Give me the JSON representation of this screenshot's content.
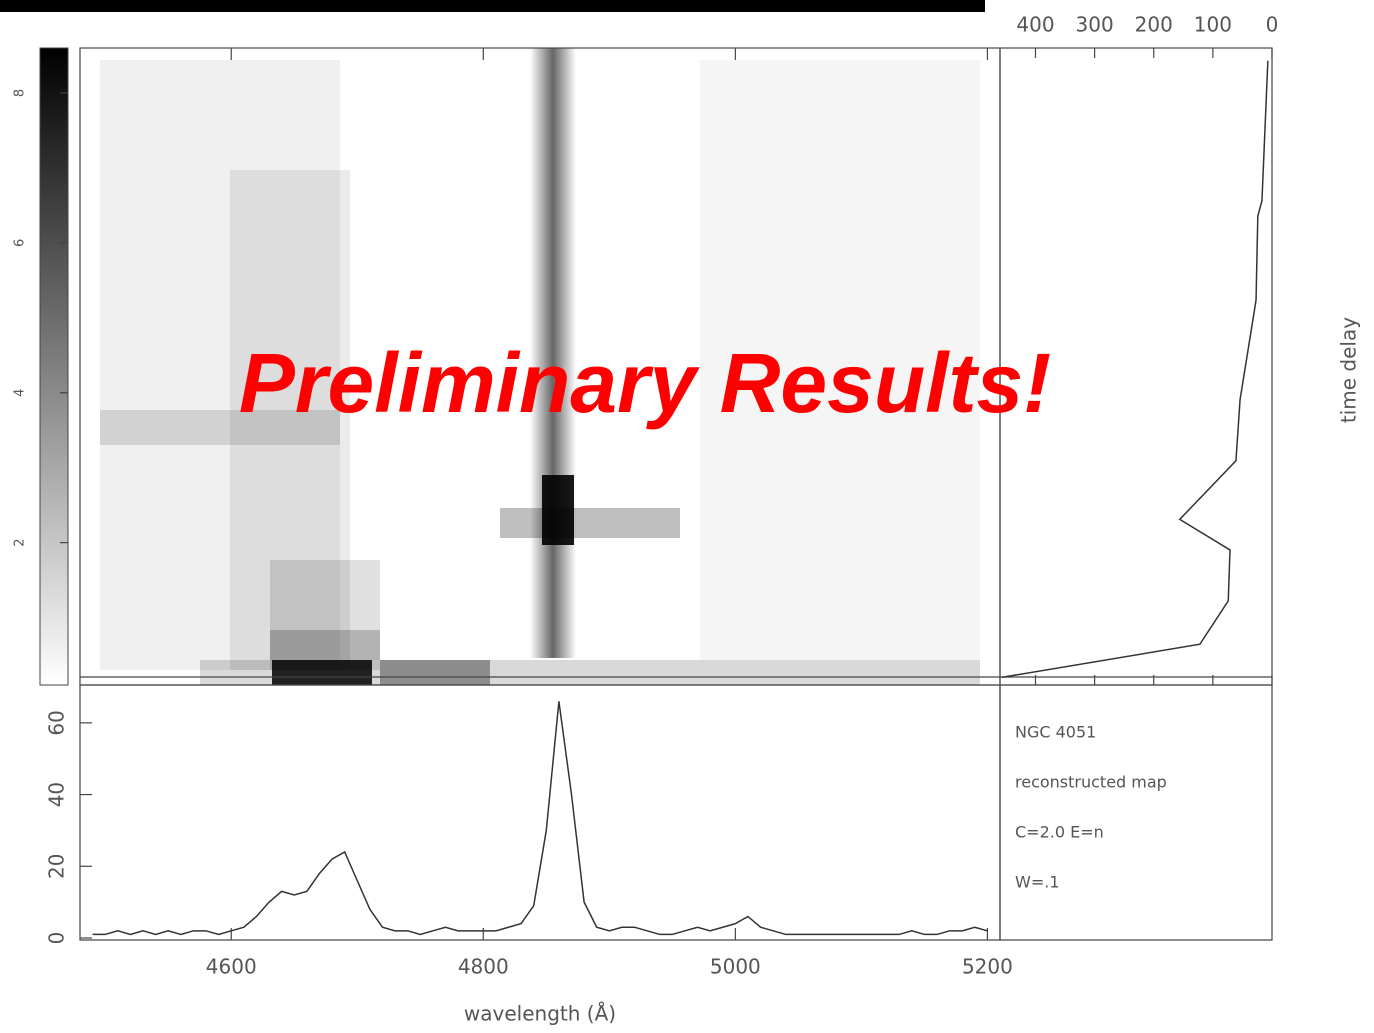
{
  "overlay_text": "Preliminary Results!",
  "chart_data": [
    {
      "type": "profile",
      "ylabel": "time delay",
      "x": [
        457,
        122,
        74,
        71,
        156,
        61,
        54,
        27,
        24,
        17,
        7
      ],
      "values": [
        0.3,
        1.6,
        3.3,
        5.3,
        6.5,
        8.8,
        11.2,
        15.1,
        18.4,
        19,
        24.5
      ],
      "xlim": [
        460,
        0
      ],
      "xticks": [
        400,
        300,
        200,
        100,
        0
      ],
      "ylim": [
        0,
        25
      ],
      "color": "#333333"
    },
    {
      "type": "line",
      "xlabel": "wavelength (Å)",
      "annotations": [
        "NGC 4051",
        "reconstructed map",
        "C=2.0 E=n",
        "W=.1"
      ],
      "x": [
        4490,
        4500,
        4510,
        4520,
        4530,
        4540,
        4550,
        4560,
        4570,
        4580,
        4590,
        4600,
        4610,
        4620,
        4630,
        4640,
        4650,
        4660,
        4670,
        4680,
        4690,
        4700,
        4710,
        4720,
        4730,
        4740,
        4750,
        4760,
        4770,
        4780,
        4790,
        4800,
        4810,
        4820,
        4830,
        4840,
        4850,
        4860,
        4870,
        4880,
        4890,
        4900,
        4910,
        4920,
        4930,
        4940,
        4950,
        4960,
        4970,
        4980,
        4990,
        5000,
        5010,
        5020,
        5030,
        5040,
        5050,
        5060,
        5070,
        5080,
        5090,
        5100,
        5110,
        5120,
        5130,
        5140,
        5150,
        5160,
        5170,
        5180,
        5190,
        5200
      ],
      "values": [
        1,
        1,
        2,
        1,
        2,
        1,
        2,
        1,
        2,
        2,
        1,
        2,
        3,
        6,
        10,
        13,
        12,
        13,
        18,
        22,
        24,
        16,
        8,
        3,
        2,
        2,
        1,
        2,
        3,
        2,
        2,
        2,
        2,
        3,
        4,
        9,
        30,
        66,
        40,
        10,
        3,
        2,
        3,
        3,
        2,
        1,
        1,
        2,
        3,
        2,
        3,
        4,
        6,
        3,
        2,
        1,
        1,
        1,
        1,
        1,
        1,
        1,
        1,
        1,
        1,
        2,
        1,
        1,
        2,
        2,
        3,
        2
      ],
      "xlim": [
        4480,
        5210
      ],
      "xticks": [
        4600,
        4800,
        5000,
        5200
      ],
      "ylim": [
        0,
        70
      ],
      "yticks": [
        0,
        20,
        40,
        60
      ],
      "color": "#333333"
    },
    {
      "type": "colorbar",
      "ylim": [
        0.1,
        8.6
      ],
      "yticks": [
        2,
        4,
        6,
        8
      ]
    }
  ]
}
